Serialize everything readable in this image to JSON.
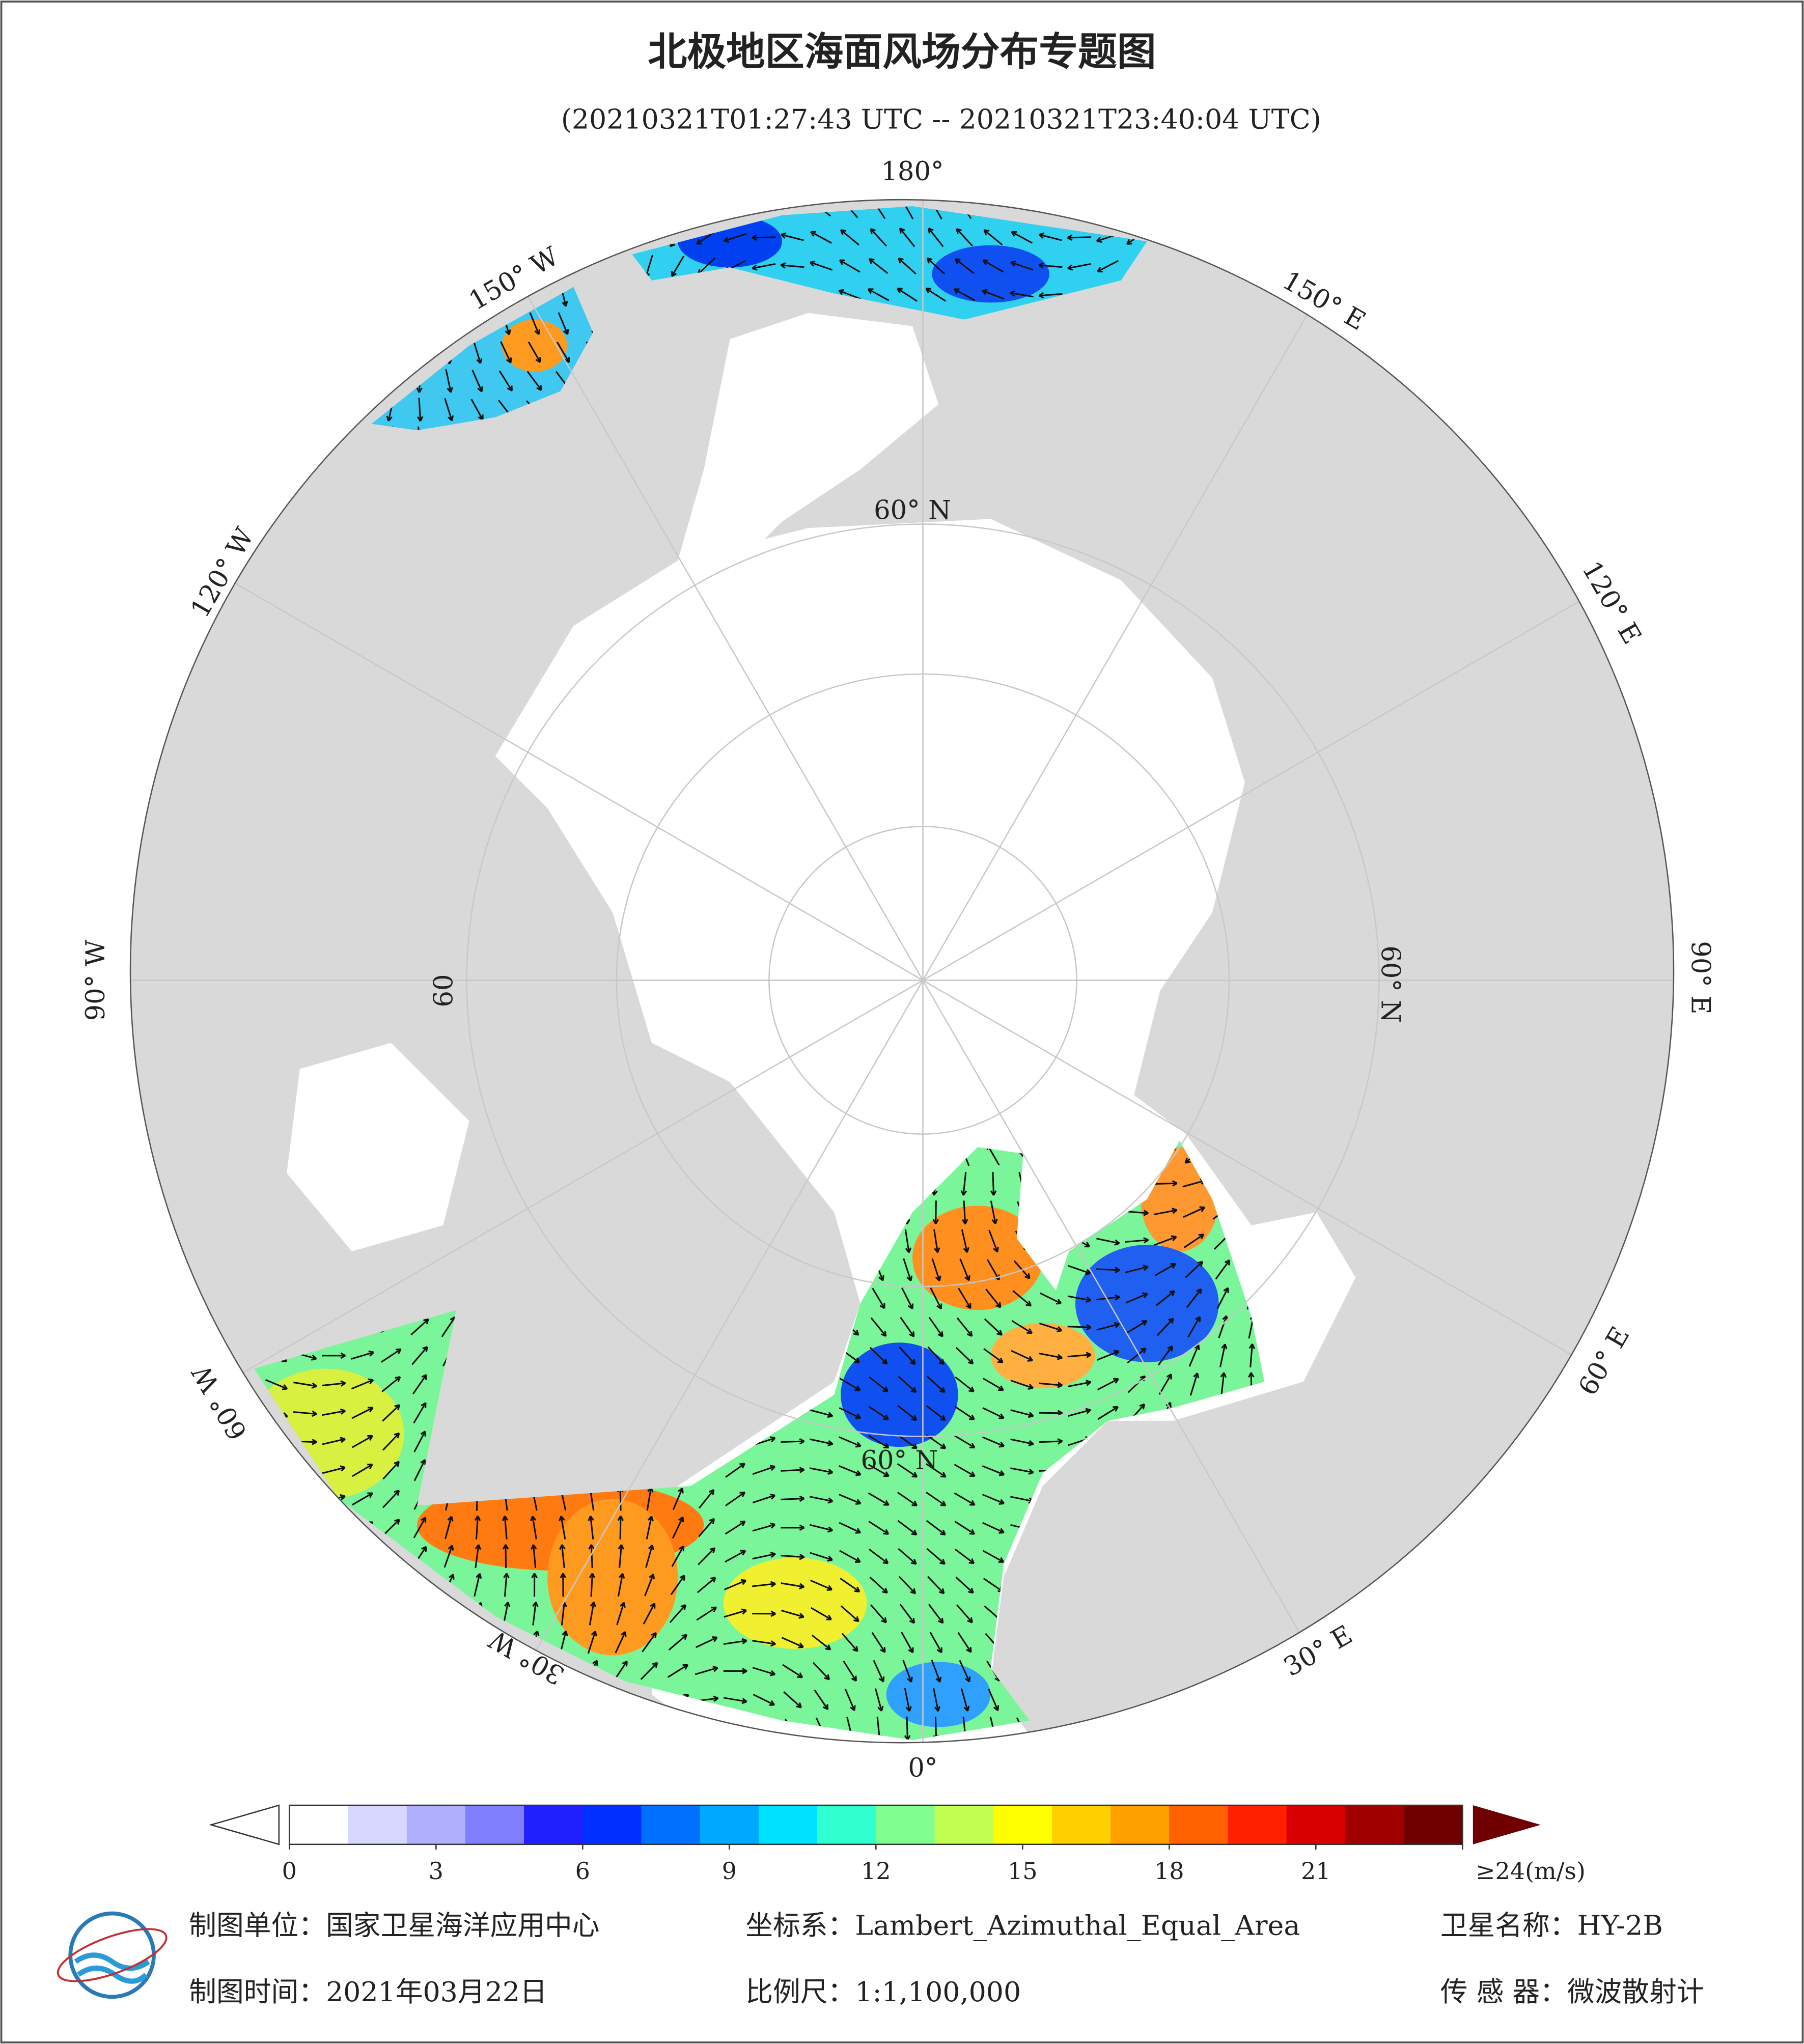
{
  "header": {
    "title": "北极地区海面风场分布专题图",
    "subtitle": "(20210321T01:27:43 UTC -- 20210321T23:40:04 UTC)"
  },
  "map": {
    "lon_labels": [
      "180°",
      "150° E",
      "120° E",
      "90° E",
      "60° E",
      "30° E",
      "0°",
      "30° W",
      "60° W",
      "90° W",
      "120° W",
      "150° W"
    ],
    "lat_labels": [
      "60° N",
      "60° N",
      "60° N",
      "60"
    ]
  },
  "colorbar": {
    "ticks": [
      0,
      3,
      6,
      9,
      12,
      15,
      18,
      21,
      {
        "value": 24,
        "label": "≥24(m/s)"
      }
    ],
    "colors": [
      "#ffffff",
      "#d8d8ff",
      "#b0b0ff",
      "#8080ff",
      "#2020ff",
      "#0030ff",
      "#0070ff",
      "#00a8ff",
      "#00e0ff",
      "#30ffd0",
      "#80ff90",
      "#c0ff50",
      "#ffff00",
      "#ffd000",
      "#ffa000",
      "#ff6000",
      "#ff2000",
      "#d80000",
      "#a00000",
      "#700000"
    ]
  },
  "footer": {
    "unit": "制图单位：国家卫星海洋应用中心",
    "crs": "坐标系：Lambert_Azimuthal_Equal_Area",
    "satellite": "卫星名称：HY-2B",
    "date": "制图时间：2021年03月22日",
    "scale": "比例尺：1:1,100,000",
    "sensor": "传 感 器：微波散射计"
  }
}
